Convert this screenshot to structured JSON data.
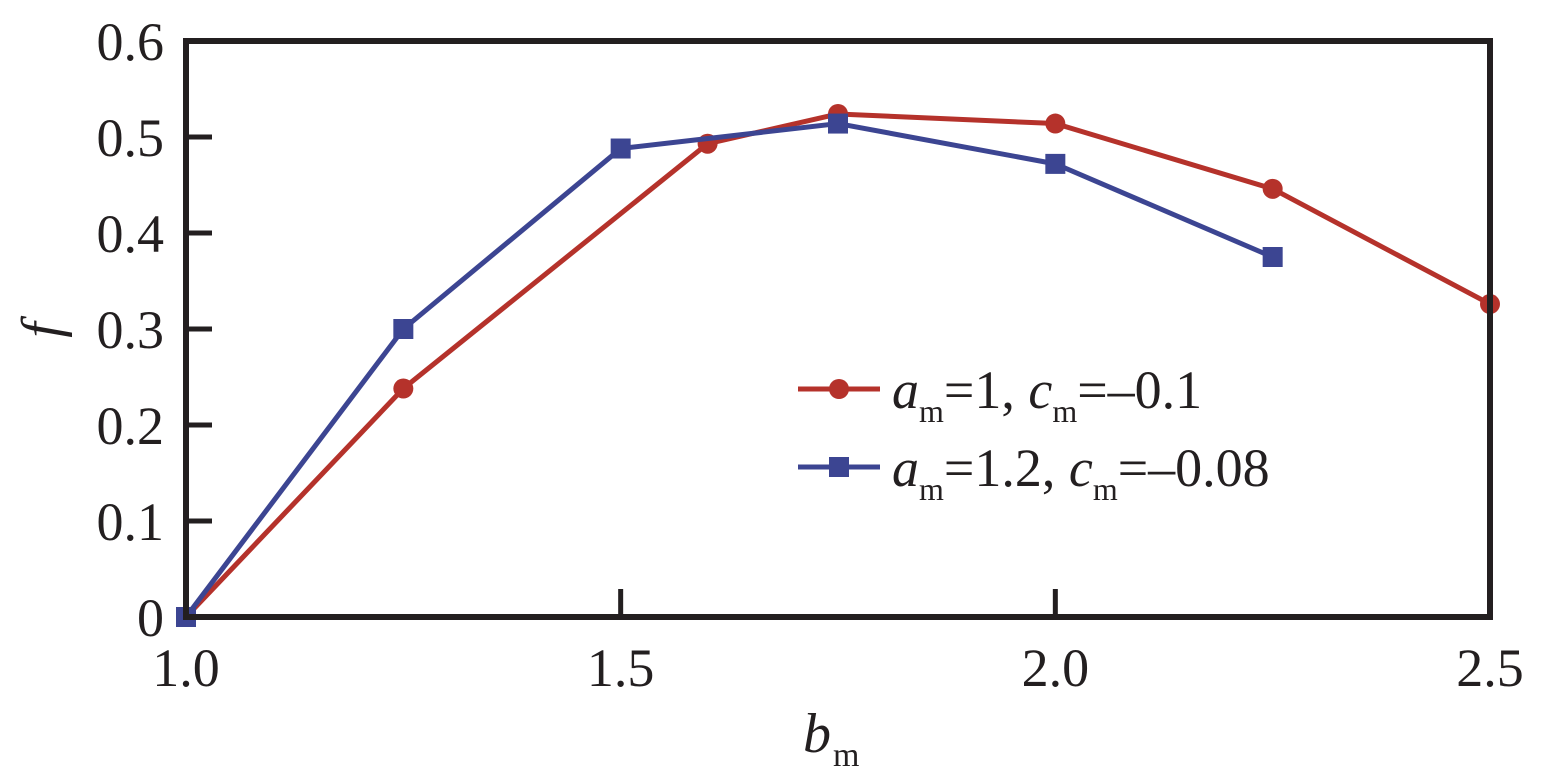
{
  "chart_data": {
    "type": "line",
    "title": "",
    "xlabel": "b",
    "xlabel_sub": "m",
    "ylabel": "f",
    "xlim": [
      1.0,
      2.5
    ],
    "ylim": [
      0,
      0.6
    ],
    "x_ticks": [
      1.0,
      1.5,
      2.0,
      2.5
    ],
    "x_tick_labels": [
      "1.0",
      "1.5",
      "2.0",
      "2.5"
    ],
    "y_ticks": [
      0,
      0.1,
      0.2,
      0.3,
      0.4,
      0.5,
      0.6
    ],
    "y_tick_labels": [
      "0",
      "0.1",
      "0.2",
      "0.3",
      "0.4",
      "0.5",
      "0.6"
    ],
    "grid": false,
    "legend_position": "center-right",
    "series": [
      {
        "legend": {
          "a": "a",
          "a_sub": "m",
          "a_val": "=1, ",
          "c": "c",
          "c_sub": "m",
          "c_val": "=–0.1"
        },
        "color": "#b5322b",
        "marker": "circle",
        "x": [
          1.0,
          1.25,
          1.6,
          1.75,
          2.0,
          2.25,
          2.5
        ],
        "y": [
          0.0,
          0.238,
          0.493,
          0.524,
          0.514,
          0.446,
          0.326
        ]
      },
      {
        "legend": {
          "a": "a",
          "a_sub": "m",
          "a_val": "=1.2, ",
          "c": "c",
          "c_sub": "m",
          "c_val": "=–0.08"
        },
        "color": "#3c4592",
        "marker": "square",
        "x": [
          1.0,
          1.25,
          1.5,
          1.75,
          2.0,
          2.25
        ],
        "y": [
          0.0,
          0.3,
          0.488,
          0.514,
          0.472,
          0.375
        ]
      }
    ]
  }
}
